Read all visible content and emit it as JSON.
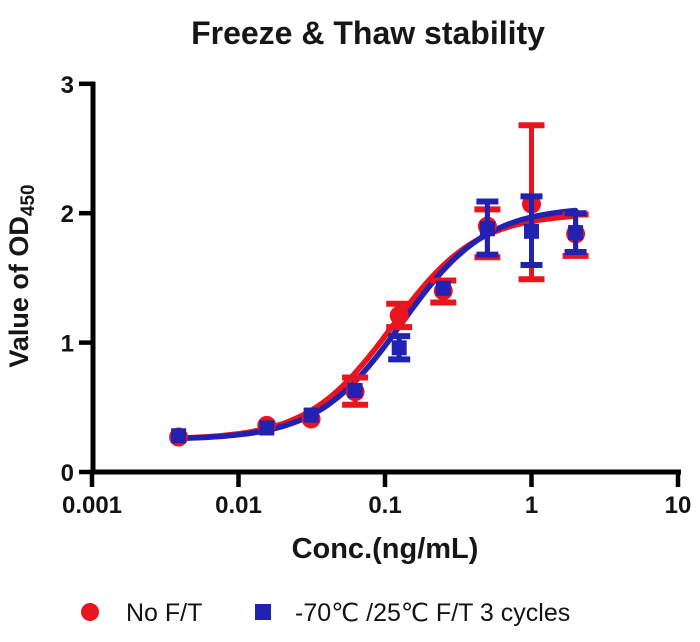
{
  "title": "Freeze & Thaw stability",
  "colors": {
    "red_series": "#e8141e",
    "blue_series": "#2121b2",
    "axis": "#000000",
    "text": "#161616",
    "background": "#ffffff"
  },
  "legend": {
    "position": "bottom",
    "items": [
      {
        "label": "No F/T",
        "marker": "circle-icon",
        "color": "#e8141e"
      },
      {
        "label": "-70℃ /25℃ F/T 3 cycles",
        "marker": "square-icon",
        "color": "#2121b2"
      }
    ]
  },
  "chart_data": {
    "type": "scatter-line",
    "title": "Freeze & Thaw stability",
    "xlabel": "Conc.(ng/mL)",
    "ylabel_main": "Value of OD",
    "ylabel_sub": "450",
    "x_scale": "log",
    "xlim": [
      0.001,
      10
    ],
    "ylim": [
      0,
      3
    ],
    "x_ticks": [
      0.001,
      0.01,
      0.1,
      1,
      10
    ],
    "x_tick_labels": [
      "0.001",
      "0.01",
      "0.1",
      "1",
      "10"
    ],
    "y_ticks": [
      0,
      1,
      2,
      3
    ],
    "y_tick_labels": [
      "0",
      "1",
      "2",
      "3"
    ],
    "grid": false,
    "legend_position": "bottom",
    "series": [
      {
        "name": "No F/T",
        "color": "#e8141e",
        "marker": "circle",
        "points": [
          {
            "x": 0.0039,
            "y": 0.27
          },
          {
            "x": 0.0156,
            "y": 0.36
          },
          {
            "x": 0.0313,
            "y": 0.41
          },
          {
            "x": 0.0625,
            "y": 0.62,
            "err_lo": 0.1,
            "err_hi": 0.11
          },
          {
            "x": 0.125,
            "y": 1.21,
            "err_lo": 0.09,
            "err_hi": 0.09
          },
          {
            "x": 0.25,
            "y": 1.4,
            "err_lo": 0.09,
            "err_hi": 0.08
          },
          {
            "x": 0.5,
            "y": 1.9,
            "err_lo": 0.24,
            "err_hi": 0.13
          },
          {
            "x": 1,
            "y": 2.07,
            "err_lo": 0.58,
            "err_hi": 0.61
          },
          {
            "x": 2,
            "y": 1.84,
            "err_lo": 0.17,
            "err_hi": 0.15
          }
        ],
        "fit_4pl": {
          "bottom": 0.25,
          "top": 2.0,
          "ec50": 0.112,
          "hill": 1.5
        }
      },
      {
        "name": "-70℃ /25℃ F/T 3 cycles",
        "color": "#2121b2",
        "marker": "square",
        "points": [
          {
            "x": 0.0039,
            "y": 0.28
          },
          {
            "x": 0.0156,
            "y": 0.34
          },
          {
            "x": 0.0313,
            "y": 0.44
          },
          {
            "x": 0.0625,
            "y": 0.63
          },
          {
            "x": 0.125,
            "y": 0.96,
            "err_lo": 0.09,
            "err_hi": 0.09
          },
          {
            "x": 0.25,
            "y": 1.42
          },
          {
            "x": 0.5,
            "y": 1.88,
            "err_lo": 0.2,
            "err_hi": 0.21
          },
          {
            "x": 1,
            "y": 1.86,
            "err_lo": 0.26,
            "err_hi": 0.27
          },
          {
            "x": 2,
            "y": 1.85,
            "err_lo": 0.15,
            "err_hi": 0.15
          }
        ],
        "fit_4pl": {
          "bottom": 0.25,
          "top": 2.05,
          "ec50": 0.13,
          "hill": 1.5
        }
      }
    ]
  }
}
